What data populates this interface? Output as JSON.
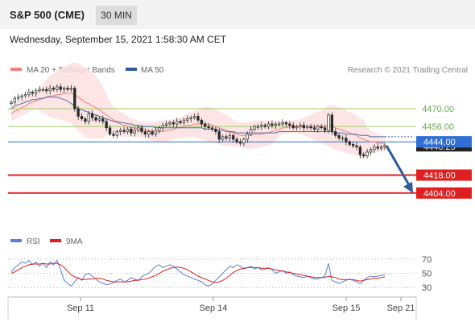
{
  "header": {
    "title": "S&P 500 (CME)",
    "timeframe": "30 MIN"
  },
  "datetime": "Wednesday, September 15, 2021 1:58:30 AM CET",
  "legend": {
    "items": [
      {
        "label": "MA 20 + Bollinger Bands",
        "color": "#f08080"
      },
      {
        "label": "MA 50",
        "color": "#2e5c9a"
      }
    ],
    "copyright": "Research © 2021 Trading Central"
  },
  "chart_data": [
    {
      "type": "candlestick",
      "y_range": [
        4390,
        4492
      ],
      "x_ticks": [
        "Sep 11",
        "Sep 14",
        "Sep 15",
        "Sep 21"
      ],
      "levels": [
        {
          "value": 4470.0,
          "label": "4470.00",
          "kind": "resistance",
          "color": "#9ccc65"
        },
        {
          "value": 4456.0,
          "label": "4456.00",
          "kind": "resistance",
          "color": "#9ccc65"
        },
        {
          "value": 4444.0,
          "label": "4444.00",
          "kind": "pivot",
          "color": "#2f6fd6"
        },
        {
          "value": 4418.0,
          "label": "4418.00",
          "kind": "support",
          "color": "#e02020"
        },
        {
          "value": 4404.0,
          "label": "4404.00",
          "kind": "support",
          "color": "#e02020"
        }
      ],
      "current_price": {
        "value": 4440.25,
        "label": "4440.25"
      },
      "closes": [
        4475,
        4478,
        4479,
        4480,
        4481,
        4483,
        4482,
        4484,
        4485,
        4485,
        4484,
        4486,
        4485,
        4487,
        4485,
        4486,
        4485,
        4486,
        4470,
        4464,
        4462,
        4460,
        4466,
        4463,
        4461,
        4462,
        4460,
        4455,
        4450,
        4449,
        4452,
        4453,
        4452,
        4454,
        4451,
        4453,
        4455,
        4452,
        4450,
        4452,
        4450,
        4453,
        4455,
        4457,
        4458,
        4459,
        4458,
        4460,
        4459,
        4461,
        4462,
        4463,
        4464,
        4461,
        4458,
        4456,
        4455,
        4454,
        4452,
        4446,
        4448,
        4447,
        4449,
        4446,
        4444,
        4443,
        4446,
        4450,
        4454,
        4456,
        4456,
        4457,
        4456,
        4458,
        4457,
        4458,
        4458,
        4459,
        4458,
        4457,
        4455,
        4456,
        4457,
        4455,
        4456,
        4455,
        4454,
        4456,
        4455,
        4453,
        4465,
        4452,
        4449,
        4447,
        4447,
        4444,
        4442,
        4441,
        4440,
        4434,
        4433,
        4436,
        4438,
        4440,
        4439,
        4440,
        4441
      ],
      "ma20_bollinger": {
        "ma20": [
          4466,
          4468,
          4469,
          4471,
          4472,
          4474,
          4475,
          4476,
          4477,
          4478,
          4479,
          4480,
          4480,
          4481,
          4481,
          4482,
          4482,
          4482,
          4481,
          4479,
          4477,
          4475,
          4474,
          4472,
          4471,
          4469,
          4467,
          4465,
          4463,
          4461,
          4459,
          4458,
          4457,
          4456,
          4455,
          4455,
          4454,
          4454,
          4453,
          4453,
          4452,
          4452,
          4452,
          4452,
          4453,
          4453,
          4454,
          4455,
          4455,
          4456,
          4457,
          4457,
          4458,
          4458,
          4458,
          4458,
          4458,
          4457,
          4456,
          4455,
          4454,
          4453,
          4452,
          4451,
          4450,
          4449,
          4449,
          4449,
          4449,
          4450,
          4450,
          4450,
          4451,
          4451,
          4452,
          4453,
          4454,
          4455,
          4455,
          4456,
          4456,
          4456,
          4456,
          4456,
          4456,
          4456,
          4456,
          4456,
          4456,
          4456,
          4457,
          4456,
          4455,
          4454,
          4453,
          4452,
          4451,
          4450,
          4449,
          4447,
          4446,
          4445,
          4444,
          4444,
          4443,
          4443,
          4442
        ]
      },
      "ma50": [
        4470,
        4472,
        4473,
        4474,
        4475,
        4476,
        4477,
        4477,
        4478,
        4478,
        4479,
        4479,
        4479,
        4479,
        4478,
        4477,
        4476,
        4474,
        4472,
        4470,
        4469,
        4468,
        4467,
        4466,
        4465,
        4464,
        4463,
        4462,
        4461,
        4460,
        4460,
        4459,
        4459,
        4458,
        4458,
        4457,
        4457,
        4456,
        4456,
        4456,
        4456,
        4455,
        4455,
        4455,
        4455,
        4455,
        4455,
        4455,
        4455,
        4455,
        4455,
        4455,
        4455,
        4455,
        4455,
        4454,
        4454,
        4454,
        4454,
        4453,
        4453,
        4452,
        4452,
        4452,
        4451,
        4451,
        4451,
        4451,
        4451,
        4451,
        4451,
        4451,
        4451,
        4451,
        4451,
        4451,
        4452,
        4452,
        4452,
        4452,
        4452,
        4452,
        4452,
        4452,
        4452,
        4452,
        4452,
        4452,
        4452,
        4452,
        4452,
        4452,
        4451,
        4451,
        4451,
        4450,
        4450,
        4450,
        4450,
        4449,
        4449,
        4449,
        4448,
        4448,
        4448,
        4448,
        4448
      ]
    },
    {
      "type": "line",
      "legend": [
        {
          "label": "RSI",
          "color": "#5b7fd4"
        },
        {
          "label": "9MA",
          "color": "#e02020"
        }
      ],
      "y_range": [
        20,
        80
      ],
      "y_ticks": [
        "70",
        "50",
        "30"
      ],
      "y_tick_values": [
        70,
        50,
        30
      ],
      "rsi": [
        52,
        58,
        62,
        66,
        64,
        68,
        62,
        66,
        60,
        64,
        58,
        66,
        62,
        68,
        55,
        40,
        36,
        32,
        38,
        44,
        40,
        48,
        50,
        46,
        42,
        38,
        36,
        34,
        35,
        37,
        40,
        42,
        38,
        40,
        44,
        42,
        40,
        45,
        48,
        50,
        55,
        60,
        62,
        58,
        60,
        62,
        60,
        56,
        52,
        48,
        46,
        44,
        42,
        40,
        38,
        34,
        32,
        35,
        40,
        45,
        50,
        55,
        60,
        58,
        62,
        60,
        56,
        58,
        60,
        56,
        58,
        55,
        56,
        58,
        55,
        50,
        52,
        54,
        50,
        52,
        48,
        46,
        45,
        44,
        46,
        44,
        42,
        42,
        44,
        46,
        64,
        40,
        38,
        36,
        38,
        40,
        42,
        40,
        38,
        35,
        40,
        44,
        46,
        45,
        46,
        47,
        48
      ],
      "ma9": [
        50,
        52,
        55,
        58,
        60,
        62,
        63,
        63,
        63,
        64,
        63,
        63,
        64,
        64,
        62,
        58,
        53,
        48,
        45,
        43,
        41,
        41,
        42,
        42,
        43,
        43,
        42,
        40,
        39,
        38,
        38,
        38,
        38,
        38,
        39,
        40,
        40,
        41,
        42,
        43,
        45,
        47,
        50,
        53,
        55,
        57,
        58,
        59,
        58,
        57,
        55,
        52,
        49,
        46,
        44,
        42,
        40,
        38,
        37,
        38,
        40,
        43,
        47,
        51,
        54,
        56,
        57,
        58,
        58,
        58,
        58,
        57,
        57,
        57,
        56,
        55,
        54,
        53,
        52,
        51,
        50,
        49,
        48,
        47,
        46,
        45,
        44,
        44,
        44,
        44,
        46,
        45,
        44,
        42,
        41,
        41,
        41,
        41,
        40,
        39,
        40,
        41,
        42,
        43,
        43,
        44,
        45
      ]
    }
  ]
}
